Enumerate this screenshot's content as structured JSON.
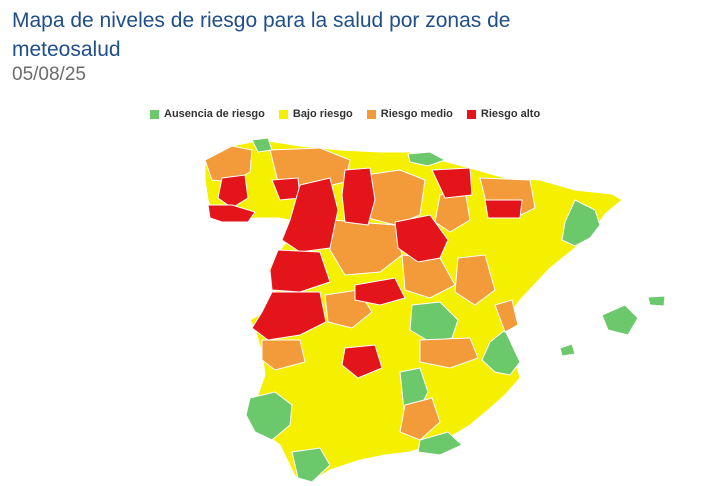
{
  "title": "Mapa de niveles de riesgo para la salud por zonas de meteosalud",
  "date": "05/08/25",
  "legend": [
    {
      "label": "Ausencia de riesgo",
      "color": "#6cc96b"
    },
    {
      "label": "Bajo riesgo",
      "color": "#f5ef00"
    },
    {
      "label": "Riesgo medio",
      "color": "#f39a3a"
    },
    {
      "label": "Riesgo alto",
      "color": "#e4141b"
    }
  ],
  "colors": {
    "border": "#ffffff"
  }
}
